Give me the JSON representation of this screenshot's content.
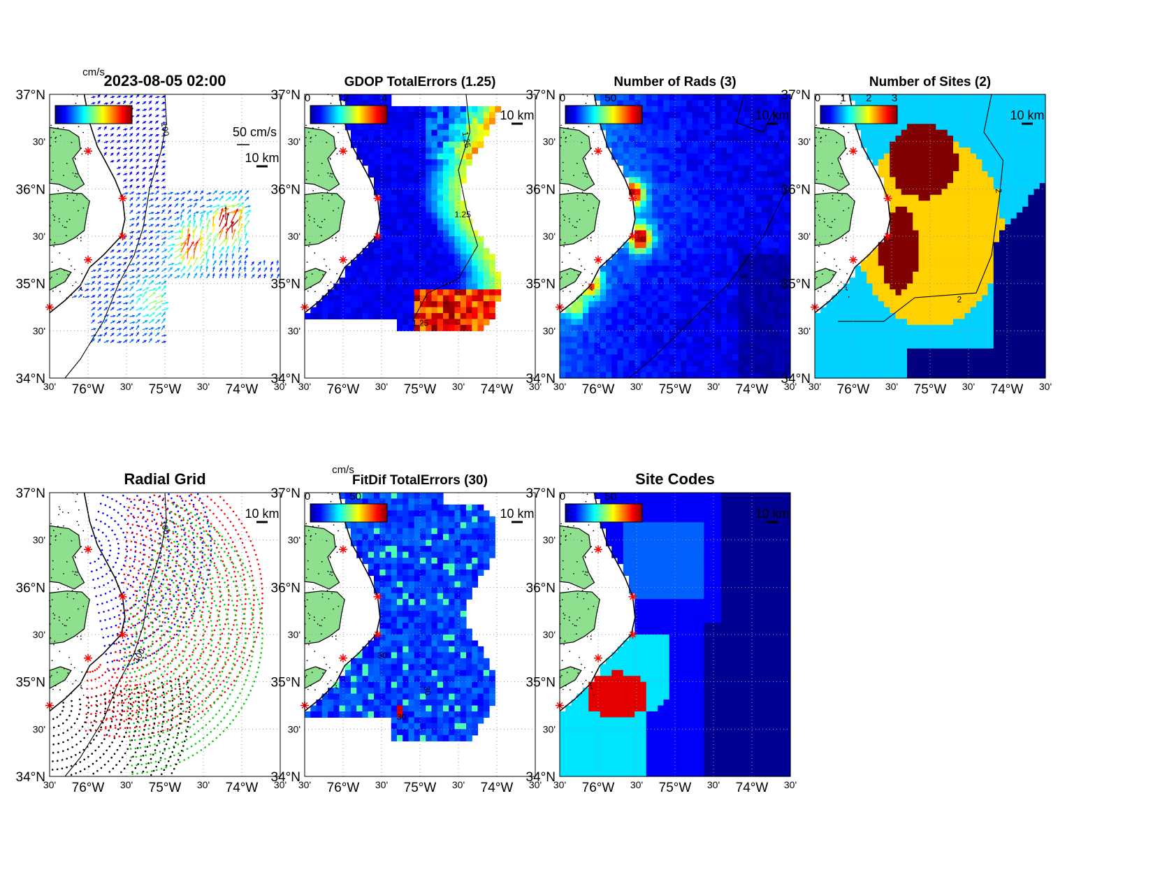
{
  "figure": {
    "unit_top": "cm/s",
    "unit_bottom": "cm/s"
  },
  "axes": {
    "lat_ticks": [
      {
        "lat": 37.0,
        "label": "37°N"
      },
      {
        "lat": 36.5,
        "label": "30'"
      },
      {
        "lat": 36.0,
        "label": "36°N"
      },
      {
        "lat": 35.5,
        "label": "30'"
      },
      {
        "lat": 35.0,
        "label": "35°N"
      },
      {
        "lat": 34.5,
        "label": "30'"
      },
      {
        "lat": 34.0,
        "label": "34°N"
      }
    ],
    "lon_ticks": [
      {
        "lon": -76.5,
        "label": "30'"
      },
      {
        "lon": -76.0,
        "label": "76°W"
      },
      {
        "lon": -75.5,
        "label": "30'"
      },
      {
        "lon": -75.0,
        "label": "75°W"
      },
      {
        "lon": -74.5,
        "label": "30'"
      },
      {
        "lon": -74.0,
        "label": "74°W"
      },
      {
        "lon": -73.5,
        "label": "30'"
      }
    ],
    "xlim": [
      -76.5,
      -73.5
    ],
    "ylim": [
      34.0,
      37.0
    ]
  },
  "sites": [
    {
      "lon": -76.0,
      "lat": 36.4
    },
    {
      "lon": -75.55,
      "lat": 35.9
    },
    {
      "lon": -75.55,
      "lat": 35.5
    },
    {
      "lon": -76.0,
      "lat": 35.25
    },
    {
      "lon": -76.5,
      "lat": 34.75
    }
  ],
  "chart_data": [
    {
      "type": "heatmap",
      "panel": "vectors",
      "title": "2023-08-05 02:00",
      "colorbar": {
        "unit": "cm/s",
        "ticks": []
      },
      "scale_vector": "50 cm/s",
      "scale_bar": "10 km",
      "contours": [
        {
          "label": "100"
        },
        {
          "label": "100"
        }
      ],
      "field": "vectors"
    },
    {
      "type": "heatmap",
      "panel": "gdop",
      "title": "GDOP TotalErrors (1.25)",
      "colorbar": {
        "ticks": [
          "0",
          "2",
          "4"
        ],
        "range": [
          0,
          4
        ]
      },
      "scale_bar": "10 km",
      "contours": [
        {
          "label": "1.25"
        },
        {
          "label": "1.25"
        },
        {
          "label": "1.25"
        }
      ],
      "field": "gdop"
    },
    {
      "type": "heatmap",
      "panel": "rads",
      "title": "Number of Rads (3)",
      "colorbar": {
        "ticks": [
          "0",
          "50"
        ],
        "range": [
          0,
          80
        ]
      },
      "scale_bar": "10 km",
      "contours": [
        {
          "label": "3"
        }
      ],
      "field": "rads"
    },
    {
      "type": "heatmap",
      "panel": "sites",
      "title": "Number of Sites (2)",
      "colorbar": {
        "ticks": [
          "0",
          "1",
          "2",
          "3"
        ],
        "range": [
          0,
          3
        ]
      },
      "scale_bar": "10 km",
      "contours": [
        {
          "label": "2"
        },
        {
          "label": "2"
        },
        {
          "label": "2"
        }
      ],
      "field": "sites"
    },
    {
      "type": "scatter",
      "panel": "radial",
      "title": "Radial Grid",
      "scale_bar": "10 km",
      "contours": [
        {
          "label": "100"
        },
        {
          "label": "100"
        }
      ],
      "series": [
        {
          "color": "#0000ff"
        },
        {
          "color": "#ff0000"
        },
        {
          "color": "#00cc00"
        },
        {
          "color": "#ff0000"
        },
        {
          "color": "#000000"
        }
      ]
    },
    {
      "type": "heatmap",
      "panel": "fitdif",
      "title": "FitDif TotalErrors (30)",
      "colorbar": {
        "unit": "cm/s",
        "ticks": [
          "0",
          "50"
        ],
        "range": [
          0,
          80
        ]
      },
      "scale_bar": "10 km",
      "contours": [
        {
          "label": "30"
        },
        {
          "label": "30"
        },
        {
          "label": "30"
        }
      ],
      "field": "fitdif"
    },
    {
      "type": "heatmap",
      "panel": "codes",
      "title": "Site Codes",
      "colorbar": {
        "ticks": [
          "0",
          "50"
        ],
        "range": [
          0,
          80
        ]
      },
      "scale_bar": "10 km",
      "field": "codes"
    }
  ]
}
